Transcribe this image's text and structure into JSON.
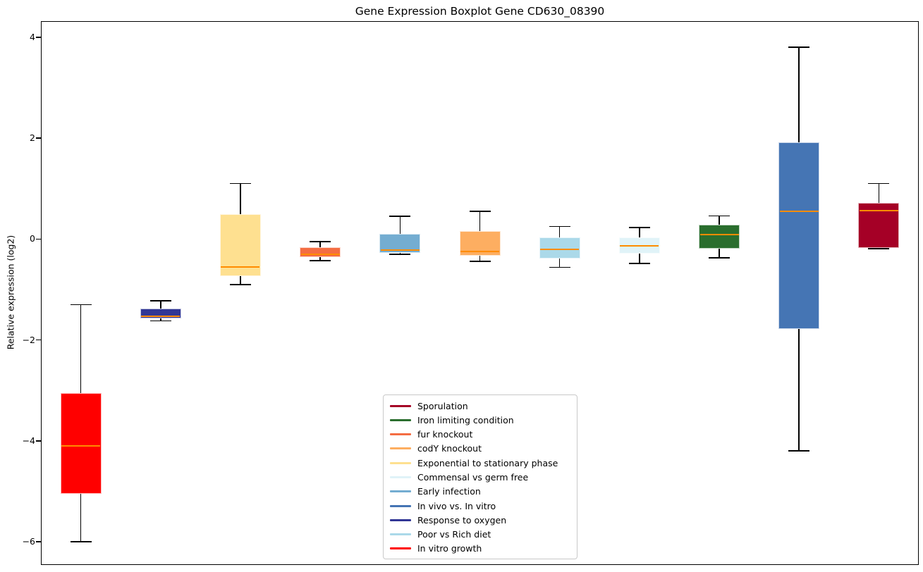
{
  "chart_data": {
    "type": "boxplot",
    "title": "Gene Expression Boxplot Gene CD630_08390",
    "xlabel": "",
    "ylabel": "Relative expression (log2)",
    "ylim": [
      -6.46,
      4.32
    ],
    "grid": false,
    "background_color": "#ffffff",
    "median_color": "#ff8c00",
    "whisker_color": "#000000",
    "yticks": [
      {
        "value": 4,
        "label": "4"
      },
      {
        "value": 2,
        "label": "2"
      },
      {
        "value": 0,
        "label": "0"
      },
      {
        "value": -2,
        "label": "−2"
      },
      {
        "value": -4,
        "label": "−4"
      },
      {
        "value": -6,
        "label": "−6"
      }
    ],
    "boxes": [
      {
        "name": "In vitro growth",
        "color": "#ff0000",
        "whislo": -6.0,
        "q1": -5.05,
        "med": -4.1,
        "q3": -3.05,
        "whishi": -1.3
      },
      {
        "name": "Response to oxygen",
        "color": "#313695",
        "whislo": -1.62,
        "q1": -1.57,
        "med": -1.53,
        "q3": -1.38,
        "whishi": -1.22
      },
      {
        "name": "Exponential to stationary phase",
        "color": "#fee090",
        "whislo": -0.9,
        "q1": -0.73,
        "med": -0.55,
        "q3": 0.5,
        "whishi": 1.1
      },
      {
        "name": "fur knockout",
        "color": "#f46d43",
        "whislo": -0.43,
        "q1": -0.36,
        "med": -0.3,
        "q3": -0.16,
        "whishi": -0.05
      },
      {
        "name": "Early infection",
        "color": "#74add1",
        "whislo": -0.3,
        "q1": -0.27,
        "med": -0.22,
        "q3": 0.1,
        "whishi": 0.45
      },
      {
        "name": "codY knockout",
        "color": "#fdae61",
        "whislo": -0.44,
        "q1": -0.33,
        "med": -0.25,
        "q3": 0.16,
        "whishi": 0.55
      },
      {
        "name": "Poor vs Rich diet",
        "color": "#abd9e9",
        "whislo": -0.56,
        "q1": -0.38,
        "med": -0.2,
        "q3": 0.04,
        "whishi": 0.25
      },
      {
        "name": "Commensal vs germ free",
        "color": "#e0f3f8",
        "whislo": -0.48,
        "q1": -0.29,
        "med": -0.13,
        "q3": 0.03,
        "whishi": 0.23
      },
      {
        "name": "Iron limiting condition",
        "color": "#2a6e2e",
        "whislo": -0.37,
        "q1": -0.19,
        "med": 0.09,
        "q3": 0.29,
        "whishi": 0.46
      },
      {
        "name": "In vivo vs. In vitro",
        "color": "#4575b4",
        "whislo": -4.2,
        "q1": -1.78,
        "med": 0.55,
        "q3": 1.92,
        "whishi": 3.8
      },
      {
        "name": "Sporulation",
        "color": "#a50026",
        "whislo": -0.19,
        "q1": -0.18,
        "med": 0.56,
        "q3": 0.72,
        "whishi": 1.1
      }
    ],
    "legend": {
      "position": "bottom-center",
      "entries": [
        {
          "label": "Sporulation",
          "color": "#a50026"
        },
        {
          "label": "Iron limiting condition",
          "color": "#2a6e2e"
        },
        {
          "label": "fur knockout",
          "color": "#f46d43"
        },
        {
          "label": "codY knockout",
          "color": "#fdae61"
        },
        {
          "label": "Exponential to stationary phase",
          "color": "#fee090"
        },
        {
          "label": "Commensal vs germ free",
          "color": "#e0f3f8"
        },
        {
          "label": "Early infection",
          "color": "#74add1"
        },
        {
          "label": "In vivo vs. In vitro",
          "color": "#4575b4"
        },
        {
          "label": "Response to oxygen",
          "color": "#313695"
        },
        {
          "label": "Poor vs Rich diet",
          "color": "#abd9e9"
        },
        {
          "label": "In vitro growth",
          "color": "#ff0000"
        }
      ]
    }
  }
}
